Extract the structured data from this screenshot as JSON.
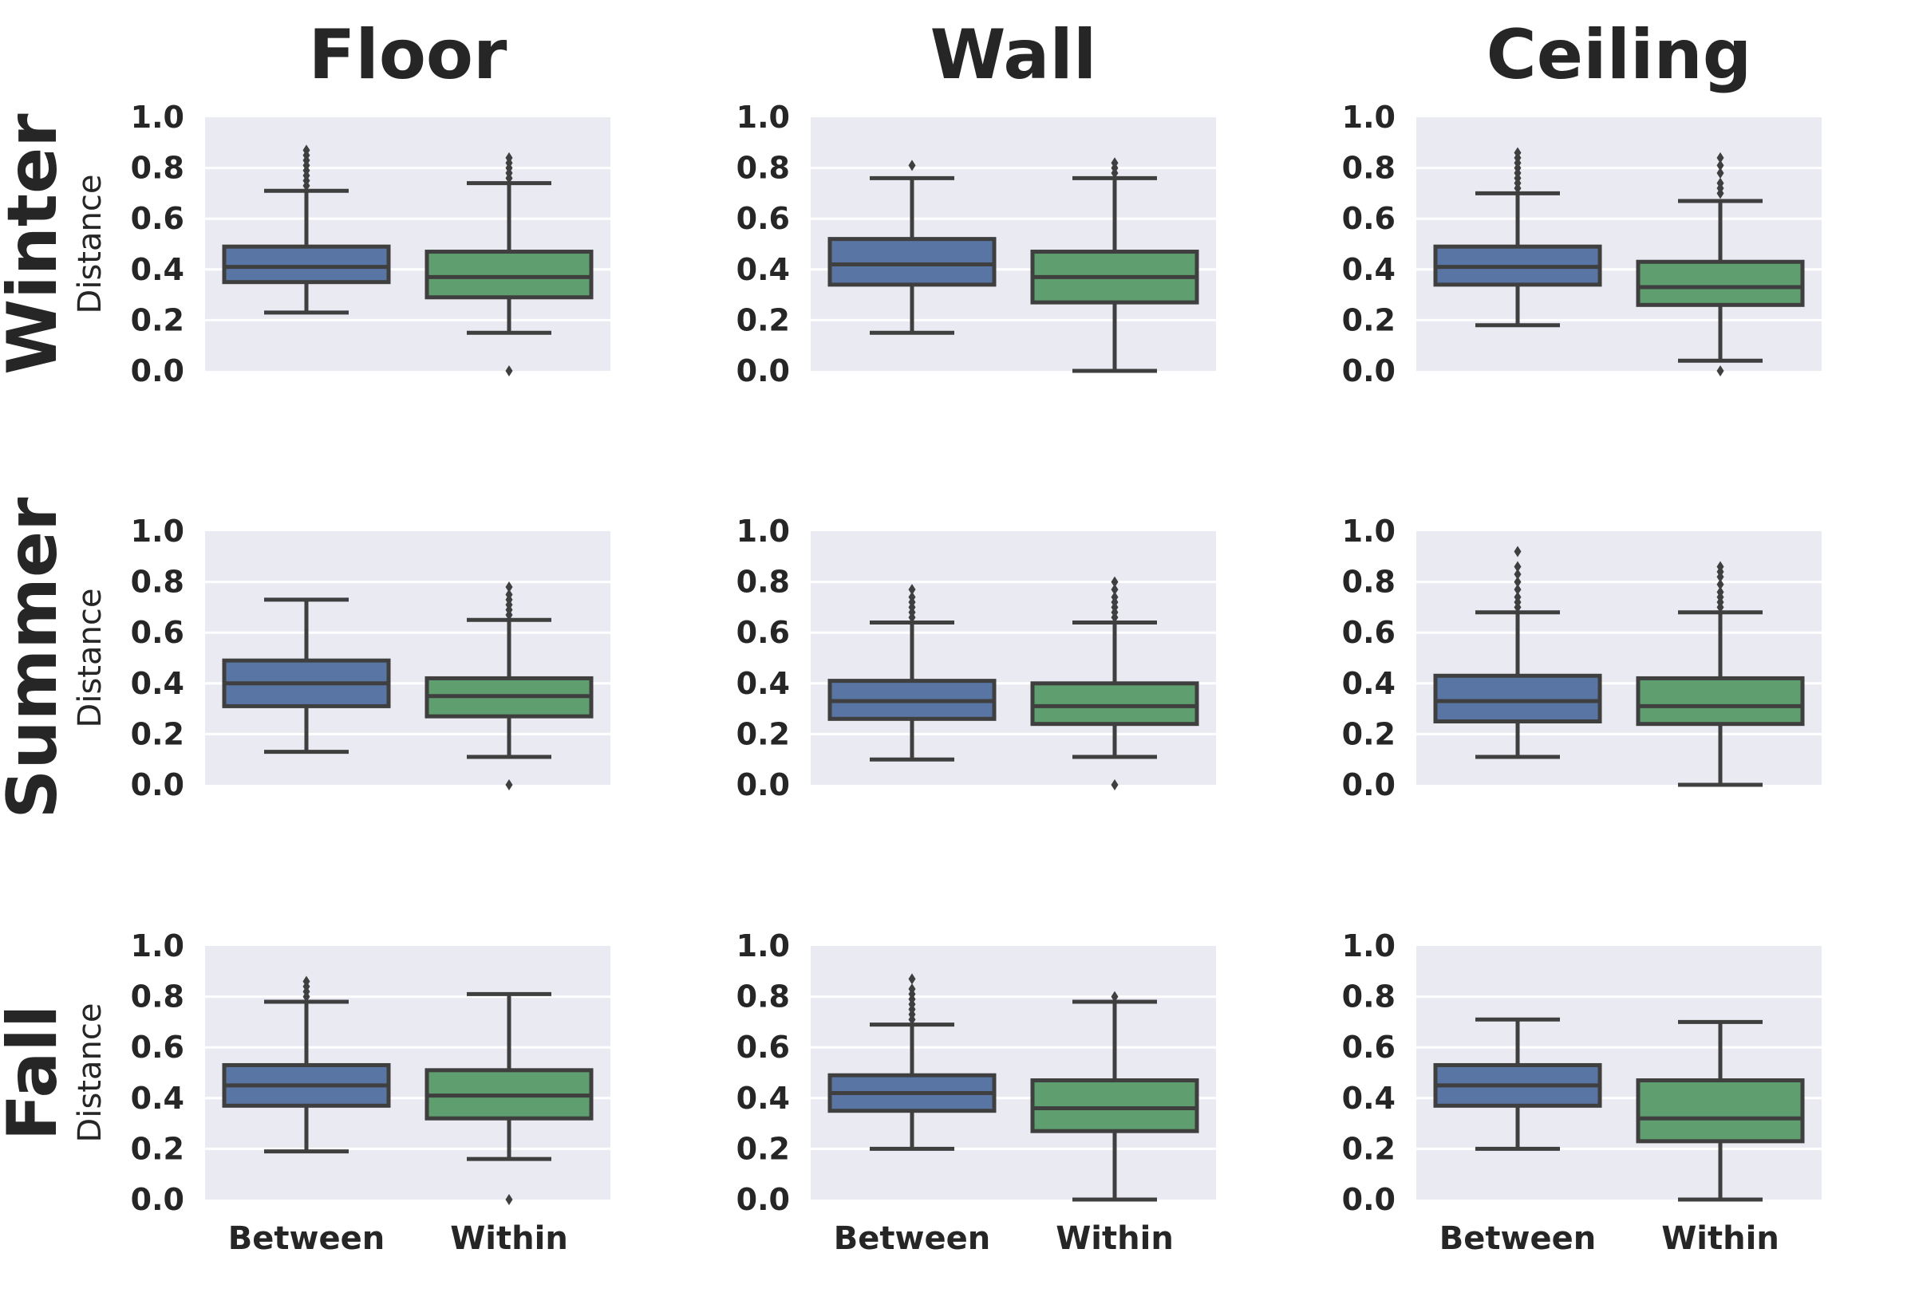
{
  "chart_data": {
    "type": "box",
    "columns": [
      "Floor",
      "Wall",
      "Ceiling"
    ],
    "rows": [
      "Winter",
      "Summer",
      "Fall"
    ],
    "categories": [
      "Between",
      "Within"
    ],
    "ylabel": "Distance",
    "ylim": [
      0,
      1
    ],
    "yticks": [
      "0.0",
      "0.2",
      "0.4",
      "0.6",
      "0.8",
      "1.0"
    ],
    "grid": true,
    "colors": {
      "Between": "#5875a4",
      "Within": "#5f9e6e",
      "background": "#eaeaf2",
      "edge": "#3f3f3f"
    },
    "panels": [
      {
        "row": "Winter",
        "column": "Floor",
        "boxes": [
          {
            "category": "Between",
            "whislo": 0.23,
            "q1": 0.35,
            "med": 0.41,
            "q3": 0.49,
            "whishi": 0.71,
            "fliers": [
              0.73,
              0.75,
              0.77,
              0.79,
              0.81,
              0.83,
              0.85,
              0.87
            ]
          },
          {
            "category": "Within",
            "whislo": 0.15,
            "q1": 0.29,
            "med": 0.37,
            "q3": 0.47,
            "whishi": 0.74,
            "fliers": [
              0.0,
              0.76,
              0.78,
              0.8,
              0.82,
              0.84
            ]
          }
        ]
      },
      {
        "row": "Winter",
        "column": "Wall",
        "boxes": [
          {
            "category": "Between",
            "whislo": 0.15,
            "q1": 0.34,
            "med": 0.42,
            "q3": 0.52,
            "whishi": 0.76,
            "fliers": [
              0.81
            ]
          },
          {
            "category": "Within",
            "whislo": 0.0,
            "q1": 0.27,
            "med": 0.37,
            "q3": 0.47,
            "whishi": 0.76,
            "fliers": [
              0.78,
              0.8,
              0.82
            ]
          }
        ]
      },
      {
        "row": "Winter",
        "column": "Ceiling",
        "boxes": [
          {
            "category": "Between",
            "whislo": 0.18,
            "q1": 0.34,
            "med": 0.41,
            "q3": 0.49,
            "whishi": 0.7,
            "fliers": [
              0.72,
              0.74,
              0.76,
              0.78,
              0.8,
              0.82,
              0.84,
              0.86
            ]
          },
          {
            "category": "Within",
            "whislo": 0.04,
            "q1": 0.26,
            "med": 0.33,
            "q3": 0.43,
            "whishi": 0.67,
            "fliers": [
              0.0,
              0.7,
              0.72,
              0.74,
              0.78,
              0.81,
              0.84
            ]
          }
        ]
      },
      {
        "row": "Summer",
        "column": "Floor",
        "boxes": [
          {
            "category": "Between",
            "whislo": 0.13,
            "q1": 0.31,
            "med": 0.4,
            "q3": 0.49,
            "whishi": 0.73,
            "fliers": []
          },
          {
            "category": "Within",
            "whislo": 0.11,
            "q1": 0.27,
            "med": 0.35,
            "q3": 0.42,
            "whishi": 0.65,
            "fliers": [
              0.0,
              0.67,
              0.69,
              0.71,
              0.73,
              0.75,
              0.78
            ]
          }
        ]
      },
      {
        "row": "Summer",
        "column": "Wall",
        "boxes": [
          {
            "category": "Between",
            "whislo": 0.1,
            "q1": 0.26,
            "med": 0.33,
            "q3": 0.41,
            "whishi": 0.64,
            "fliers": [
              0.66,
              0.68,
              0.7,
              0.72,
              0.74,
              0.77
            ]
          },
          {
            "category": "Within",
            "whislo": 0.11,
            "q1": 0.24,
            "med": 0.31,
            "q3": 0.4,
            "whishi": 0.64,
            "fliers": [
              0.0,
              0.66,
              0.68,
              0.7,
              0.72,
              0.74,
              0.77,
              0.8
            ]
          }
        ]
      },
      {
        "row": "Summer",
        "column": "Ceiling",
        "boxes": [
          {
            "category": "Between",
            "whislo": 0.11,
            "q1": 0.25,
            "med": 0.33,
            "q3": 0.43,
            "whishi": 0.68,
            "fliers": [
              0.7,
              0.72,
              0.74,
              0.77,
              0.8,
              0.83,
              0.86,
              0.92
            ]
          },
          {
            "category": "Within",
            "whislo": 0.0,
            "q1": 0.24,
            "med": 0.31,
            "q3": 0.42,
            "whishi": 0.68,
            "fliers": [
              0.7,
              0.72,
              0.74,
              0.76,
              0.79,
              0.82,
              0.84,
              0.86
            ]
          }
        ]
      },
      {
        "row": "Fall",
        "column": "Floor",
        "boxes": [
          {
            "category": "Between",
            "whislo": 0.19,
            "q1": 0.37,
            "med": 0.45,
            "q3": 0.53,
            "whishi": 0.78,
            "fliers": [
              0.8,
              0.82,
              0.84,
              0.86
            ]
          },
          {
            "category": "Within",
            "whislo": 0.16,
            "q1": 0.32,
            "med": 0.41,
            "q3": 0.51,
            "whishi": 0.81,
            "fliers": [
              0.0
            ]
          }
        ]
      },
      {
        "row": "Fall",
        "column": "Wall",
        "boxes": [
          {
            "category": "Between",
            "whislo": 0.2,
            "q1": 0.35,
            "med": 0.42,
            "q3": 0.49,
            "whishi": 0.69,
            "fliers": [
              0.71,
              0.73,
              0.75,
              0.77,
              0.79,
              0.81,
              0.83,
              0.87
            ]
          },
          {
            "category": "Within",
            "whislo": 0.0,
            "q1": 0.27,
            "med": 0.36,
            "q3": 0.47,
            "whishi": 0.78,
            "fliers": [
              0.8
            ]
          }
        ]
      },
      {
        "row": "Fall",
        "column": "Ceiling",
        "boxes": [
          {
            "category": "Between",
            "whislo": 0.2,
            "q1": 0.37,
            "med": 0.45,
            "q3": 0.53,
            "whishi": 0.71,
            "fliers": []
          },
          {
            "category": "Within",
            "whislo": 0.0,
            "q1": 0.23,
            "med": 0.32,
            "q3": 0.47,
            "whishi": 0.7,
            "fliers": []
          }
        ]
      }
    ]
  }
}
